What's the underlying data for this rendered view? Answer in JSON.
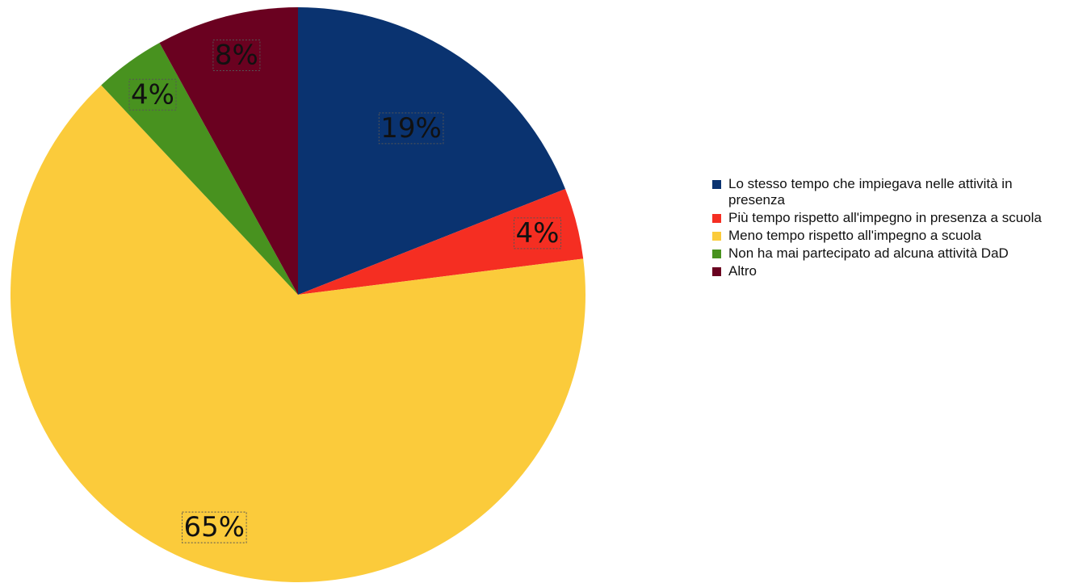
{
  "chart_data": {
    "type": "pie",
    "title": "",
    "legend_position": "right",
    "slices": [
      {
        "label": "Lo stesso tempo che impiegava nelle attività in presenza",
        "value": 19,
        "value_label": "19%",
        "color": "#0a3370"
      },
      {
        "label": "Più tempo rispetto all'impegno in presenza a scuola",
        "value": 4,
        "value_label": "4%",
        "color": "#f52e22"
      },
      {
        "label": "Meno tempo rispetto all'impegno a scuola",
        "value": 65,
        "value_label": "65%",
        "color": "#fbcb3b"
      },
      {
        "label": "Non ha mai partecipato ad alcuna attività DaD",
        "value": 4,
        "value_label": "4%",
        "color": "#48921f"
      },
      {
        "label": "Altro",
        "value": 8,
        "value_label": "8%",
        "color": "#6a0120"
      }
    ]
  }
}
